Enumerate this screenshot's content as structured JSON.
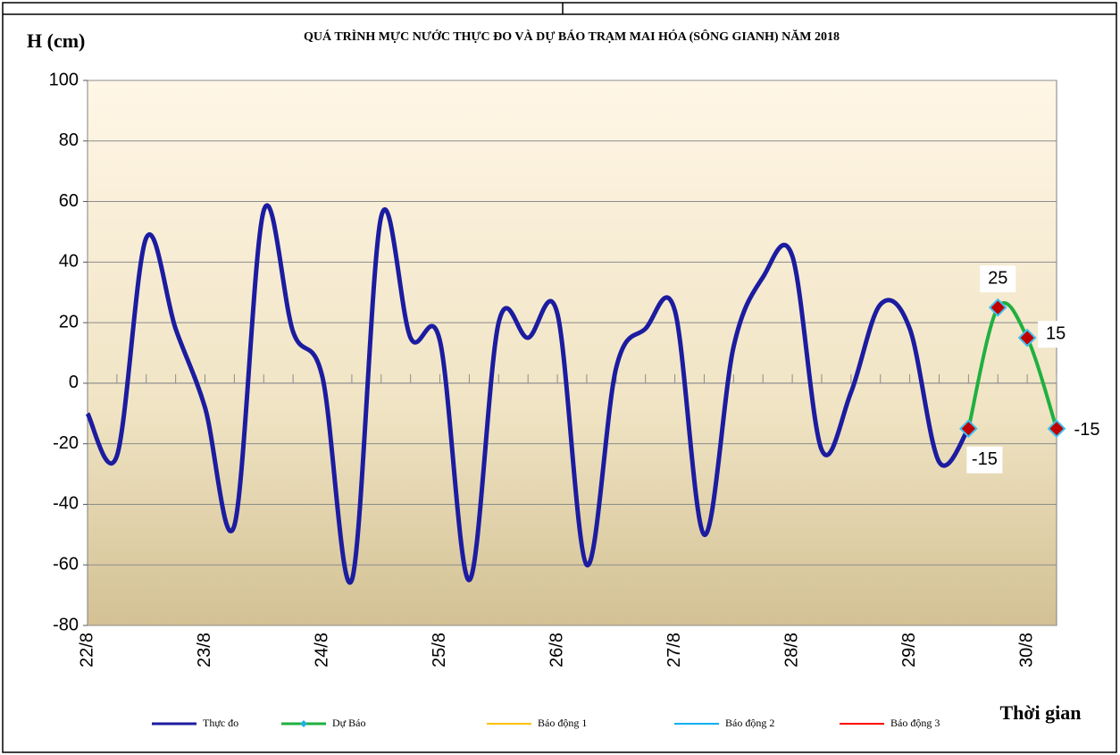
{
  "chart_data": {
    "type": "line",
    "title": "QUÁ TRÌNH MỰC NƯỚC THỰC ĐO VÀ DỰ BÁO TRẠM MAI HÓA (SÔNG GIANH) NĂM  2018",
    "y_label": "H (cm)",
    "x_label": "Thời gian",
    "categories": [
      "22/8",
      null,
      null,
      null,
      "23/8",
      null,
      null,
      null,
      "24/8",
      null,
      null,
      null,
      "25/8",
      null,
      null,
      null,
      "26/8",
      null,
      null,
      null,
      "27/8",
      null,
      null,
      null,
      "28/8",
      null,
      null,
      null,
      "29/8",
      null,
      null,
      null,
      "30/8",
      null
    ],
    "series": [
      {
        "name": "Thực đo",
        "color": "#1c1ca0",
        "values": [
          -10,
          -24,
          48,
          18,
          -8,
          -47,
          57,
          17,
          2,
          -65,
          55,
          15,
          14,
          -65,
          20,
          15,
          23,
          -60,
          5,
          18,
          24,
          -50,
          12,
          35,
          42,
          -22,
          -3,
          26,
          18,
          -26,
          -15,
          null,
          null,
          null
        ]
      },
      {
        "name": "Dự Báo",
        "color": "#20b040",
        "values": [
          null,
          null,
          null,
          null,
          null,
          null,
          null,
          null,
          null,
          null,
          null,
          null,
          null,
          null,
          null,
          null,
          null,
          null,
          null,
          null,
          null,
          null,
          null,
          null,
          null,
          null,
          null,
          null,
          null,
          null,
          -15,
          25,
          15,
          -15
        ]
      },
      {
        "name": "Báo động 1",
        "color": "#ffc000",
        "values": [
          null,
          null,
          null,
          null,
          null,
          null,
          null,
          null,
          null,
          null,
          null,
          null,
          null,
          null,
          null,
          null,
          null,
          null,
          null,
          null,
          null,
          null,
          null,
          null,
          null,
          null,
          null,
          null,
          null,
          null,
          null,
          null,
          null,
          null
        ]
      },
      {
        "name": "Báo động 2",
        "color": "#00b0f0",
        "values": [
          null,
          null,
          null,
          null,
          null,
          null,
          null,
          null,
          null,
          null,
          null,
          null,
          null,
          null,
          null,
          null,
          null,
          null,
          null,
          null,
          null,
          null,
          null,
          null,
          null,
          null,
          null,
          null,
          null,
          null,
          null,
          null,
          null,
          null
        ]
      },
      {
        "name": "Báo động 3",
        "color": "#ff0000",
        "values": [
          null,
          null,
          null,
          null,
          null,
          null,
          null,
          null,
          null,
          null,
          null,
          null,
          null,
          null,
          null,
          null,
          null,
          null,
          null,
          null,
          null,
          null,
          null,
          null,
          null,
          null,
          null,
          null,
          null,
          null,
          null,
          null,
          null,
          null
        ]
      }
    ],
    "ylim": [
      -80,
      100
    ],
    "yticks": [
      -80,
      -60,
      -40,
      -20,
      0,
      20,
      40,
      60,
      80,
      100
    ],
    "grid": true
  }
}
